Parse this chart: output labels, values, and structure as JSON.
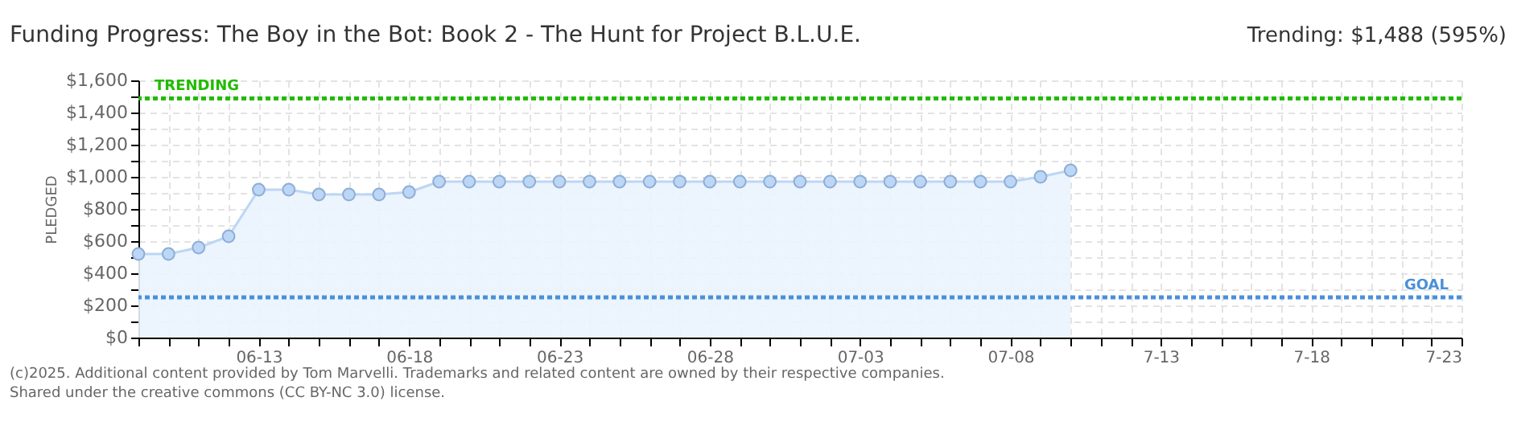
{
  "chart_data": {
    "type": "area",
    "title": "Funding Progress: The Boy in the Bot: Book 2 - The Hunt for Project B.L.U.E.",
    "ylabel": "PLEDGED",
    "x": [
      "2025-06-09",
      "2025-06-10",
      "2025-06-11",
      "2025-06-12",
      "2025-06-13",
      "2025-06-14",
      "2025-06-15",
      "2025-06-16",
      "2025-06-17",
      "2025-06-18",
      "2025-06-19",
      "2025-06-20",
      "2025-06-21",
      "2025-06-22",
      "2025-06-23",
      "2025-06-24",
      "2025-06-25",
      "2025-06-26",
      "2025-06-27",
      "2025-06-28",
      "2025-06-29",
      "2025-06-30",
      "2025-07-01",
      "2025-07-02",
      "2025-07-03",
      "2025-07-04",
      "2025-07-05",
      "2025-07-06",
      "2025-07-07",
      "2025-07-08",
      "2025-07-09",
      "2025-07-10"
    ],
    "series": [
      {
        "color": "#bcd6f5",
        "values": [
          520,
          520,
          560,
          630,
          920,
          920,
          890,
          890,
          890,
          905,
          970,
          970,
          970,
          970,
          970,
          970,
          970,
          970,
          970,
          970,
          970,
          970,
          970,
          970,
          970,
          970,
          970,
          970,
          970,
          970,
          1000,
          1040
        ]
      }
    ],
    "marker": "circle",
    "grid": true,
    "xlim": [
      "2025-06-09",
      "2025-07-23"
    ],
    "xticks": [
      {
        "value": "2025-06-09",
        "label": null
      },
      {
        "value": "2025-06-10",
        "label": null
      },
      {
        "value": "2025-06-11",
        "label": null
      },
      {
        "value": "2025-06-12",
        "label": null
      },
      {
        "value": "2025-06-13",
        "label": "06-13"
      },
      {
        "value": "2025-06-14",
        "label": null
      },
      {
        "value": "2025-06-15",
        "label": null
      },
      {
        "value": "2025-06-16",
        "label": null
      },
      {
        "value": "2025-06-17",
        "label": null
      },
      {
        "value": "2025-06-18",
        "label": "06-18"
      },
      {
        "value": "2025-06-19",
        "label": null
      },
      {
        "value": "2025-06-20",
        "label": null
      },
      {
        "value": "2025-06-21",
        "label": null
      },
      {
        "value": "2025-06-22",
        "label": null
      },
      {
        "value": "2025-06-23",
        "label": "06-23"
      },
      {
        "value": "2025-06-24",
        "label": null
      },
      {
        "value": "2025-06-25",
        "label": null
      },
      {
        "value": "2025-06-26",
        "label": null
      },
      {
        "value": "2025-06-27",
        "label": null
      },
      {
        "value": "2025-06-28",
        "label": "06-28"
      },
      {
        "value": "2025-06-29",
        "label": null
      },
      {
        "value": "2025-06-30",
        "label": null
      },
      {
        "value": "2025-07-01",
        "label": null
      },
      {
        "value": "2025-07-02",
        "label": null
      },
      {
        "value": "2025-07-03",
        "label": "07-03"
      },
      {
        "value": "2025-07-04",
        "label": null
      },
      {
        "value": "2025-07-05",
        "label": null
      },
      {
        "value": "2025-07-06",
        "label": null
      },
      {
        "value": "2025-07-07",
        "label": null
      },
      {
        "value": "2025-07-08",
        "label": "07-08"
      },
      {
        "value": "2025-07-09",
        "label": null
      },
      {
        "value": "2025-07-10",
        "label": null
      },
      {
        "value": "2025-07-11",
        "label": null
      },
      {
        "value": "2025-07-12",
        "label": null
      },
      {
        "value": "2025-07-13",
        "label": "7-13"
      },
      {
        "value": "2025-07-14",
        "label": null
      },
      {
        "value": "2025-07-15",
        "label": null
      },
      {
        "value": "2025-07-16",
        "label": null
      },
      {
        "value": "2025-07-17",
        "label": null
      },
      {
        "value": "2025-07-18",
        "label": "7-18"
      },
      {
        "value": "2025-07-19",
        "label": null
      },
      {
        "value": "2025-07-20",
        "label": null
      },
      {
        "value": "2025-07-21",
        "label": null
      },
      {
        "value": "2025-07-22",
        "label": null
      },
      {
        "value": "2025-07-23",
        "label": "7-23"
      }
    ],
    "ylim": [
      0,
      1600
    ],
    "yticks": [
      {
        "value": 0,
        "label": "$0"
      },
      {
        "value": 100,
        "label": null
      },
      {
        "value": 200,
        "label": "$200"
      },
      {
        "value": 300,
        "label": null
      },
      {
        "value": 400,
        "label": "$400"
      },
      {
        "value": 500,
        "label": null
      },
      {
        "value": 600,
        "label": "$600"
      },
      {
        "value": 700,
        "label": null
      },
      {
        "value": 800,
        "label": "$800"
      },
      {
        "value": 900,
        "label": null
      },
      {
        "value": 1000,
        "label": "$1,000"
      },
      {
        "value": 1100,
        "label": null
      },
      {
        "value": 1200,
        "label": "$1,200"
      },
      {
        "value": 1300,
        "label": null
      },
      {
        "value": 1400,
        "label": "$1,400"
      },
      {
        "value": 1500,
        "label": null
      },
      {
        "value": 1600,
        "label": "$1,600"
      }
    ],
    "ref_lines": [
      {
        "axis": "y",
        "value": 1488,
        "label": "TRENDING",
        "color": "#22bb00",
        "line_style": "dotted"
      },
      {
        "axis": "y",
        "value": 250,
        "label": "GOAL",
        "color": "#4a90d9",
        "line_style": "dotted"
      }
    ],
    "annotations": [
      "Trending: $1,488 (595%)",
      "(c)2025. Additional content provided by Tom Marvelli. Trademarks and related content are owned by their respective companies.",
      "Shared under the creative commons (CC BY-NC 3.0) license."
    ]
  }
}
